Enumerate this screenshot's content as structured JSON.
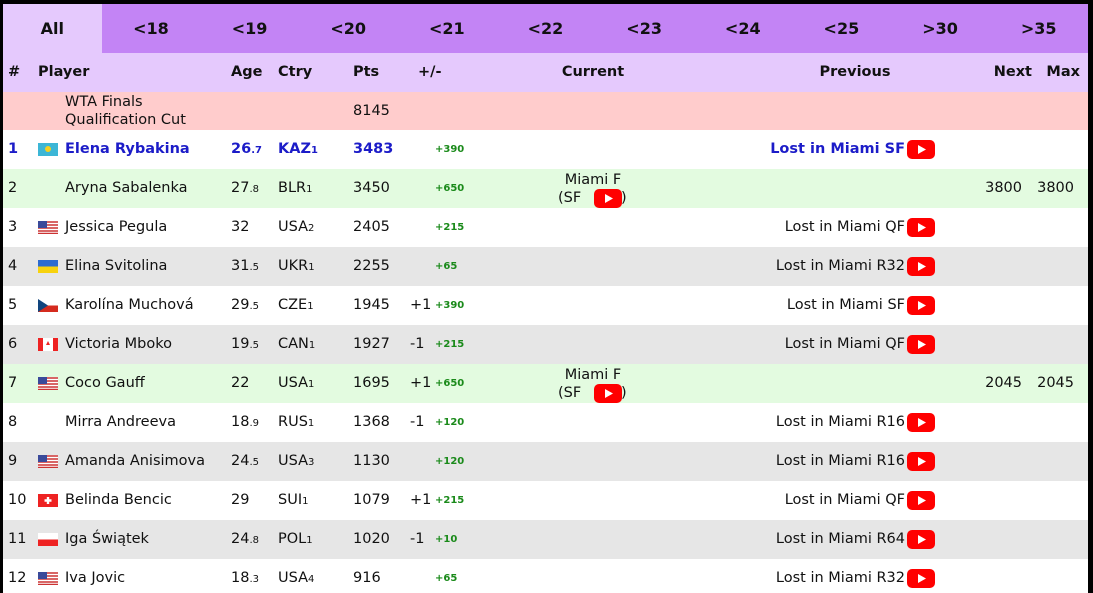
{
  "tabs": [
    "All",
    "<18",
    "<19",
    "<20",
    "<21",
    "<22",
    "<23",
    "<24",
    "<25",
    ">30",
    ">35"
  ],
  "table": {
    "headers": [
      "#",
      "Player",
      "Age",
      "Ctry",
      "Pts",
      "+/-",
      "Current",
      "Previous",
      "Next",
      "Max"
    ],
    "cut": {
      "label": "WTA Finals Qualification Cut",
      "pts": 8145
    },
    "rows": [
      {
        "rank": 1,
        "player": "Elena Rybakina",
        "age": "26",
        "age_dec": ".7",
        "ctry": "KAZ",
        "ctry_num": "1",
        "pts": 3483,
        "delta": "+390",
        "previous": "Lost in Miami SF"
      },
      {
        "rank": 2,
        "player": "Aryna Sabalenka",
        "age": "27",
        "age_dec": ".8",
        "ctry": "BLR",
        "ctry_num": "1",
        "pts": 3450,
        "delta": "+650",
        "current": {
          "event": "Miami F",
          "open": "(SF",
          "close": ")"
        },
        "next": 3800,
        "max": 3800
      },
      {
        "rank": 3,
        "player": "Jessica Pegula",
        "age": "32",
        "ctry": "USA",
        "ctry_num": "2",
        "pts": 2405,
        "delta": "+215",
        "previous": "Lost in Miami QF"
      },
      {
        "rank": 4,
        "player": "Elina Svitolina",
        "age": "31",
        "age_dec": ".5",
        "ctry": "UKR",
        "ctry_num": "1",
        "pts": 2255,
        "delta": "+65",
        "previous": "Lost in Miami R32"
      },
      {
        "rank": 5,
        "player": "Karolína Muchová",
        "age": "29",
        "age_dec": ".5",
        "ctry": "CZE",
        "ctry_num": "1",
        "pts": 1945,
        "move": "+1",
        "delta": "+390",
        "previous": "Lost in Miami SF"
      },
      {
        "rank": 6,
        "player": "Victoria Mboko",
        "age": "19",
        "age_dec": ".5",
        "ctry": "CAN",
        "ctry_num": "1",
        "pts": 1927,
        "move": "-1",
        "delta": "+215",
        "previous": "Lost in Miami QF"
      },
      {
        "rank": 7,
        "player": "Coco Gauff",
        "age": "22",
        "ctry": "USA",
        "ctry_num": "1",
        "pts": 1695,
        "move": "+1",
        "delta": "+650",
        "current": {
          "event": "Miami F",
          "open": "(SF",
          "close": ")"
        },
        "next": 2045,
        "max": 2045
      },
      {
        "rank": 8,
        "player": "Mirra Andreeva",
        "age": "18",
        "age_dec": ".9",
        "ctry": "RUS",
        "ctry_num": "1",
        "pts": 1368,
        "move": "-1",
        "delta": "+120",
        "previous": "Lost in Miami R16"
      },
      {
        "rank": 9,
        "player": "Amanda Anisimova",
        "age": "24",
        "age_dec": ".5",
        "ctry": "USA",
        "ctry_num": "3",
        "pts": 1130,
        "delta": "+120",
        "previous": "Lost in Miami R16"
      },
      {
        "rank": 10,
        "player": "Belinda Bencic",
        "age": "29",
        "ctry": "SUI",
        "ctry_num": "1",
        "pts": 1079,
        "move": "+1",
        "delta": "+215",
        "previous": "Lost in Miami QF"
      },
      {
        "rank": 11,
        "player": "Iga Świątek",
        "age": "24",
        "age_dec": ".8",
        "ctry": "POL",
        "ctry_num": "1",
        "pts": 1020,
        "move": "-1",
        "delta": "+10",
        "previous": "Lost in Miami R64"
      },
      {
        "rank": 12,
        "player": "Iva Jovic",
        "age": "18",
        "age_dec": ".3",
        "ctry": "USA",
        "ctry_num": "4",
        "pts": 916,
        "delta": "+65",
        "previous": "Lost in Miami R32"
      }
    ]
  }
}
